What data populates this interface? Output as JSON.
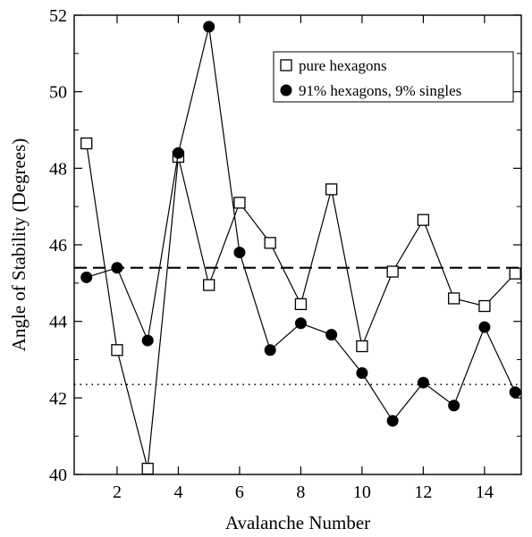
{
  "chart_data": {
    "type": "line",
    "xlabel": "Avalanche Number",
    "ylabel": "Angle of Stability (Degrees)",
    "xlim": [
      0.6,
      15.2
    ],
    "ylim": [
      40,
      52
    ],
    "xticks": [
      2,
      4,
      6,
      8,
      10,
      12,
      14
    ],
    "yticks": [
      40,
      42,
      44,
      46,
      48,
      50,
      52
    ],
    "xtick_labels": [
      "2",
      "4",
      "6",
      "8",
      "10",
      "12",
      "14"
    ],
    "ytick_labels": [
      "40",
      "42",
      "44",
      "46",
      "48",
      "50",
      "52"
    ],
    "legend_position": "top-right",
    "series": [
      {
        "name": "pure hexagons",
        "marker": "open-square",
        "x": [
          1,
          2,
          3,
          4,
          5,
          6,
          7,
          8,
          9,
          10,
          11,
          12,
          13,
          14,
          15
        ],
        "values": [
          48.65,
          43.25,
          40.15,
          48.3,
          44.95,
          47.1,
          46.05,
          44.45,
          47.45,
          43.35,
          45.3,
          46.65,
          44.6,
          44.4,
          45.25
        ]
      },
      {
        "name": "91% hexagons, 9% singles",
        "marker": "filled-circle",
        "x": [
          1,
          2,
          3,
          4,
          5,
          6,
          7,
          8,
          9,
          10,
          11,
          12,
          13,
          14,
          15
        ],
        "values": [
          45.15,
          45.4,
          43.5,
          48.4,
          51.7,
          45.8,
          43.25,
          43.95,
          43.65,
          42.65,
          41.4,
          42.4,
          41.8,
          43.85,
          42.15
        ]
      }
    ],
    "reference_lines": [
      {
        "style": "dashed",
        "y": 45.4
      },
      {
        "style": "dotted",
        "y": 42.35
      }
    ]
  }
}
